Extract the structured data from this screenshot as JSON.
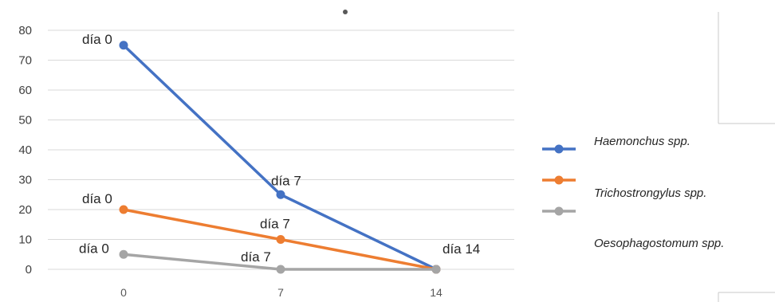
{
  "chart_data": {
    "type": "line",
    "title": "",
    "xlabel": "",
    "ylabel": "",
    "x": [
      0,
      7,
      14
    ],
    "categories": [
      "0",
      "7",
      "14"
    ],
    "ylim": [
      0,
      80
    ],
    "yticks": [
      "0",
      "10",
      "20",
      "30",
      "40",
      "50",
      "60",
      "70",
      "80"
    ],
    "grid": true,
    "legend_position": "right",
    "series": [
      {
        "name": "Haemonchus spp.",
        "color": "#4472c4",
        "values": [
          75,
          25,
          0
        ],
        "point_labels": [
          "día 0",
          "día 7",
          "día 14"
        ]
      },
      {
        "name": "Trichostrongylus spp.",
        "color": "#ed7d31",
        "values": [
          20,
          10,
          0
        ],
        "point_labels": [
          "día 0",
          "día 7",
          ""
        ]
      },
      {
        "name": "Oesophagostomum spp.",
        "color": "#a5a5a5",
        "values": [
          5,
          0,
          0
        ],
        "point_labels": [
          "día 0",
          "día 7",
          ""
        ]
      }
    ]
  }
}
